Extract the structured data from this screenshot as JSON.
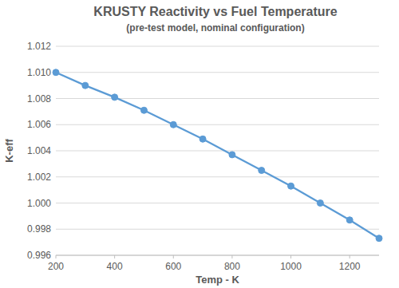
{
  "chart_data": {
    "type": "line",
    "title": "KRUSTY Reactivity vs Fuel Temperature",
    "subtitle": "(pre-test model, nominal configuration)",
    "x_label": "Temp - K",
    "y_label": "K-eff",
    "x": [
      200,
      300,
      400,
      500,
      600,
      700,
      800,
      900,
      1000,
      1100,
      1200,
      1300
    ],
    "series": [
      {
        "name": "K-eff",
        "color": "#5b9bd5",
        "marker": "circle",
        "line_style": "solid",
        "values": [
          1.01,
          1.009,
          1.0081,
          1.0071,
          1.006,
          1.0049,
          1.0037,
          1.0025,
          1.0013,
          1.0,
          0.9987,
          0.9973
        ]
      }
    ],
    "xlim": [
      200,
      1300
    ],
    "xticks": [
      200,
      400,
      600,
      800,
      1000,
      1200
    ],
    "ylim": [
      0.996,
      1.012
    ],
    "yticks": [
      0.996,
      0.998,
      {
        "value": 1,
        "label": "1.000"
      },
      1.002,
      1.004,
      1.006,
      1.008,
      {
        "value": 1.01,
        "label": "1.010"
      },
      1.012
    ],
    "grid": true
  }
}
